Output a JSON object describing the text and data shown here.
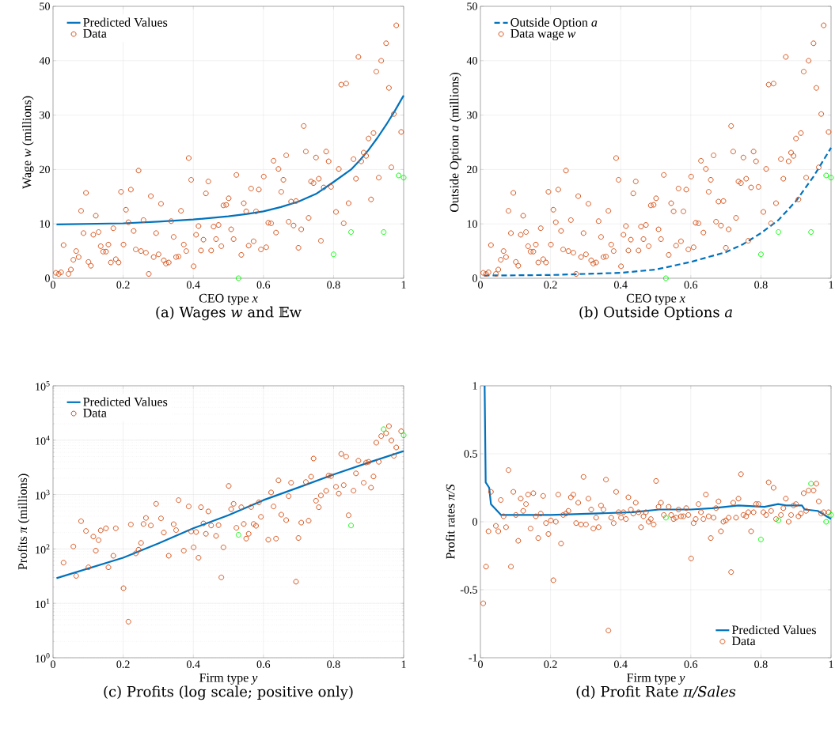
{
  "chart_data": [
    {
      "type": "scatter",
      "title": "(a) Wages *w* and 𝔼w",
      "xlabel": "CEO type *x*",
      "ylabel": "Wage *w* (millions)",
      "xlim": [
        0,
        1
      ],
      "ylim": [
        0,
        50
      ],
      "xticks": [
        0,
        0.2,
        0.4,
        0.6,
        0.8,
        1
      ],
      "yticks": [
        0,
        10,
        20,
        30,
        40,
        50
      ],
      "grid": true,
      "legend": "top left",
      "series": [
        {
          "name": "Predicted Values",
          "type": "line",
          "color": "#0072bd",
          "line_style": "solid",
          "x": [
            0.01,
            0.2,
            0.3,
            0.4,
            0.5,
            0.55,
            0.6,
            0.65,
            0.7,
            0.75,
            0.8,
            0.85,
            0.875,
            0.9,
            0.925,
            0.95,
            0.975,
            1.0
          ],
          "values": [
            9.9,
            10.1,
            10.4,
            10.8,
            11.4,
            11.8,
            12.3,
            13.1,
            14.1,
            15.5,
            17.7,
            20.0,
            21.7,
            23.6,
            25.8,
            28.2,
            30.8,
            33.6
          ]
        },
        {
          "name": "Data",
          "type": "scatter",
          "color": "#d95319",
          "marker": "circle",
          "x": [
            0.008,
            0.016,
            0.023,
            0.03,
            0.044,
            0.051,
            0.058,
            0.066,
            0.073,
            0.08,
            0.087,
            0.094,
            0.101,
            0.108,
            0.115,
            0.122,
            0.13,
            0.136,
            0.143,
            0.151,
            0.158,
            0.165,
            0.172,
            0.179,
            0.187,
            0.194,
            0.201,
            0.208,
            0.215,
            0.222,
            0.23,
            0.236,
            0.244,
            0.251,
            0.258,
            0.265,
            0.273,
            0.279,
            0.287,
            0.294,
            0.301,
            0.308,
            0.316,
            0.322,
            0.33,
            0.337,
            0.344,
            0.351,
            0.358,
            0.365,
            0.373,
            0.38,
            0.387,
            0.394,
            0.401,
            0.408,
            0.415,
            0.422,
            0.429,
            0.436,
            0.443,
            0.451,
            0.458,
            0.465,
            0.472,
            0.48,
            0.486,
            0.494,
            0.501,
            0.508,
            0.515,
            0.523,
            0.537,
            0.544,
            0.551,
            0.558,
            0.565,
            0.572,
            0.579,
            0.587,
            0.593,
            0.601,
            0.608,
            0.614,
            0.622,
            0.629,
            0.636,
            0.643,
            0.651,
            0.657,
            0.665,
            0.672,
            0.679,
            0.686,
            0.693,
            0.7,
            0.708,
            0.715,
            0.721,
            0.729,
            0.736,
            0.743,
            0.75,
            0.758,
            0.764,
            0.772,
            0.779,
            0.786,
            0.793,
            0.807,
            0.815,
            0.822,
            0.829,
            0.836,
            0.843,
            0.857,
            0.864,
            0.871,
            0.879,
            0.886,
            0.893,
            0.9,
            0.907,
            0.914,
            0.922,
            0.929,
            0.936,
            0.95,
            0.958,
            0.965,
            0.972,
            0.979,
            0.993
          ],
          "values": [
            1.0,
            0.8,
            1.1,
            6.1,
            0.8,
            1.6,
            3.4,
            5.0,
            3.9,
            12.4,
            8.3,
            15.7,
            3.0,
            2.3,
            8.0,
            11.5,
            8.5,
            5.9,
            4.9,
            4.9,
            6.2,
            2.9,
            9.2,
            3.5,
            2.9,
            15.9,
            6.2,
            12.6,
            10.3,
            16.3,
            8.7,
            5.3,
            19.8,
            5.0,
            10.7,
            4.7,
            0.8,
            15.1,
            3.9,
            8.3,
            4.4,
            13.7,
            3.3,
            2.7,
            2.9,
            10.5,
            7.6,
            3.9,
            4.0,
            12.4,
            6.2,
            5.0,
            22.1,
            18.1,
            2.2,
            8.0,
            9.6,
            5.1,
            7.1,
            15.6,
            17.8,
            5.1,
            9.5,
            7.2,
            9.8,
            5.9,
            13.4,
            13.5,
            14.7,
            9.0,
            7.2,
            19.0,
            4.3,
            13.8,
            12.3,
            6.0,
            16.5,
            6.8,
            12.3,
            16.3,
            5.3,
            18.7,
            5.7,
            10.2,
            10.1,
            21.6,
            8.4,
            20.1,
            15.9,
            18.1,
            22.6,
            10.4,
            14.1,
            9.7,
            14.2,
            5.6,
            9.0,
            28.0,
            23.3,
            11.1,
            17.8,
            17.5,
            22.2,
            18.3,
            6.9,
            16.7,
            23.3,
            21.5,
            16.8,
            12.2,
            20.1,
            35.6,
            10.1,
            35.8,
            13.8,
            21.9,
            18.3,
            40.7,
            21.5,
            23.1,
            22.5,
            25.7,
            14.5,
            26.7,
            38.0,
            18.5,
            40.0,
            43.2,
            35.0,
            20.4,
            30.2,
            46.5,
            26.9
          ]
        },
        {
          "type": "scatter",
          "color": "#00ff00",
          "marker": "circle",
          "x": [
            0.529,
            0.8,
            0.85,
            0.943,
            0.986,
            1.0
          ],
          "values": [
            0.0,
            4.4,
            8.5,
            8.5,
            18.9,
            18.5
          ]
        }
      ]
    },
    {
      "type": "scatter",
      "title": "(b) Outside Options *a*",
      "xlabel": "CEO type *x*",
      "ylabel": "Outside Option *a* (millions)",
      "xlim": [
        0,
        1
      ],
      "ylim": [
        0,
        50
      ],
      "xticks": [
        0,
        0.2,
        0.4,
        0.6,
        0.8,
        1
      ],
      "yticks": [
        0,
        10,
        20,
        30,
        40,
        50
      ],
      "grid": true,
      "legend": "top left",
      "series": [
        {
          "name": "Outside Option *a*",
          "type": "line",
          "color": "#0072bd",
          "line_style": "dashed",
          "x": [
            0.01,
            0.2,
            0.4,
            0.5,
            0.6,
            0.7,
            0.75,
            0.8,
            0.85,
            0.9,
            0.95,
            1.0
          ],
          "values": [
            0.5,
            0.6,
            1.0,
            1.6,
            3.0,
            4.8,
            6.3,
            8.3,
            10.7,
            14.2,
            18.7,
            24.0
          ]
        },
        {
          "name": "Data wage *w*",
          "type": "scatter",
          "color": "#d95319",
          "marker": "circle",
          "x": [
            0.008,
            0.016,
            0.023,
            0.03,
            0.044,
            0.051,
            0.058,
            0.066,
            0.073,
            0.08,
            0.087,
            0.094,
            0.101,
            0.108,
            0.115,
            0.122,
            0.13,
            0.136,
            0.143,
            0.151,
            0.158,
            0.165,
            0.172,
            0.179,
            0.187,
            0.194,
            0.201,
            0.208,
            0.215,
            0.222,
            0.23,
            0.236,
            0.244,
            0.251,
            0.258,
            0.265,
            0.273,
            0.279,
            0.287,
            0.294,
            0.301,
            0.308,
            0.316,
            0.322,
            0.33,
            0.337,
            0.344,
            0.351,
            0.358,
            0.365,
            0.373,
            0.38,
            0.387,
            0.394,
            0.401,
            0.408,
            0.415,
            0.422,
            0.429,
            0.436,
            0.443,
            0.451,
            0.458,
            0.465,
            0.472,
            0.48,
            0.486,
            0.494,
            0.501,
            0.508,
            0.515,
            0.523,
            0.537,
            0.544,
            0.551,
            0.558,
            0.565,
            0.572,
            0.579,
            0.587,
            0.593,
            0.601,
            0.608,
            0.614,
            0.622,
            0.629,
            0.636,
            0.643,
            0.651,
            0.657,
            0.665,
            0.672,
            0.679,
            0.686,
            0.693,
            0.7,
            0.708,
            0.715,
            0.721,
            0.729,
            0.736,
            0.743,
            0.75,
            0.758,
            0.764,
            0.772,
            0.779,
            0.786,
            0.793,
            0.807,
            0.815,
            0.822,
            0.829,
            0.836,
            0.843,
            0.857,
            0.864,
            0.871,
            0.879,
            0.886,
            0.893,
            0.9,
            0.907,
            0.914,
            0.922,
            0.929,
            0.936,
            0.95,
            0.958,
            0.965,
            0.972,
            0.979,
            0.993
          ],
          "values": [
            1.0,
            0.8,
            1.1,
            6.1,
            0.8,
            1.6,
            3.4,
            5.0,
            3.9,
            12.4,
            8.3,
            15.7,
            3.0,
            2.3,
            8.0,
            11.5,
            8.5,
            5.9,
            4.9,
            4.9,
            6.2,
            2.9,
            9.2,
            3.5,
            2.9,
            15.9,
            6.2,
            12.6,
            10.3,
            16.3,
            8.7,
            5.3,
            19.8,
            5.0,
            10.7,
            4.7,
            0.8,
            15.1,
            3.9,
            8.3,
            4.4,
            13.7,
            3.3,
            2.7,
            2.9,
            10.5,
            7.6,
            3.9,
            4.0,
            12.4,
            6.2,
            5.0,
            22.1,
            18.1,
            2.2,
            8.0,
            9.6,
            5.1,
            7.1,
            15.6,
            17.8,
            5.1,
            9.5,
            7.2,
            9.8,
            5.9,
            13.4,
            13.5,
            14.7,
            9.0,
            7.2,
            19.0,
            4.3,
            13.8,
            12.3,
            6.0,
            16.5,
            6.8,
            12.3,
            16.3,
            5.3,
            18.7,
            5.7,
            10.2,
            10.1,
            21.6,
            8.4,
            20.1,
            15.9,
            18.1,
            22.6,
            10.4,
            14.1,
            9.7,
            14.2,
            5.6,
            9.0,
            28.0,
            23.3,
            11.1,
            17.8,
            17.5,
            22.2,
            18.3,
            6.9,
            16.7,
            23.3,
            21.5,
            16.8,
            12.2,
            20.1,
            35.6,
            10.1,
            35.8,
            13.8,
            21.9,
            18.3,
            40.7,
            21.5,
            23.1,
            22.5,
            25.7,
            14.5,
            26.7,
            38.0,
            18.5,
            40.0,
            43.2,
            35.0,
            20.4,
            30.2,
            46.5,
            26.9
          ]
        },
        {
          "type": "scatter",
          "color": "#00ff00",
          "marker": "circle",
          "x": [
            0.529,
            0.8,
            0.85,
            0.943,
            0.986,
            1.0
          ],
          "values": [
            0.0,
            4.4,
            8.5,
            8.5,
            18.9,
            18.5
          ]
        }
      ]
    },
    {
      "type": "scatter",
      "title": "(c) Profits (log scale; positive only)",
      "xlabel": "Firm type *y*",
      "ylabel": "Profits *π* (millions)",
      "xlim": [
        0,
        1
      ],
      "ylim": [
        1,
        100000
      ],
      "xticks": [
        0,
        0.2,
        0.4,
        0.6,
        0.8,
        1
      ],
      "yticks": [
        {
          "value": 1,
          "label": "10$^{0}$"
        },
        {
          "value": 10,
          "label": "10$^{1}$"
        },
        {
          "value": 100,
          "label": "10$^{2}$"
        },
        {
          "value": 1000,
          "label": "10$^{3}$"
        },
        {
          "value": 10000,
          "label": "10$^{4}$"
        },
        {
          "value": 100000,
          "label": "10$^{5}$"
        }
      ],
      "log": "y",
      "grid": true,
      "legend": "top left",
      "series": [
        {
          "name": "Predicted Values",
          "type": "line",
          "color": "#0072bd",
          "line_style": "solid",
          "x": [
            0.01,
            0.2,
            0.3,
            0.4,
            0.5,
            0.6,
            0.7,
            0.8,
            0.9,
            1.0
          ],
          "values": [
            29,
            69,
            126,
            240,
            417,
            790,
            1350,
            2340,
            3880,
            6300
          ]
        },
        {
          "name": "Data",
          "type": "scatter",
          "color": "#d95319",
          "marker": "circle",
          "x": [
            0.03,
            0.058,
            0.066,
            0.08,
            0.094,
            0.101,
            0.115,
            0.122,
            0.13,
            0.136,
            0.151,
            0.158,
            0.172,
            0.179,
            0.201,
            0.215,
            0.222,
            0.236,
            0.244,
            0.251,
            0.258,
            0.265,
            0.279,
            0.294,
            0.308,
            0.316,
            0.33,
            0.344,
            0.351,
            0.358,
            0.373,
            0.387,
            0.394,
            0.401,
            0.408,
            0.415,
            0.422,
            0.429,
            0.436,
            0.443,
            0.451,
            0.465,
            0.472,
            0.48,
            0.486,
            0.501,
            0.508,
            0.515,
            0.523,
            0.537,
            0.544,
            0.551,
            0.558,
            0.565,
            0.572,
            0.579,
            0.587,
            0.593,
            0.614,
            0.622,
            0.629,
            0.636,
            0.643,
            0.651,
            0.665,
            0.672,
            0.679,
            0.693,
            0.7,
            0.708,
            0.721,
            0.729,
            0.736,
            0.743,
            0.75,
            0.758,
            0.764,
            0.779,
            0.786,
            0.793,
            0.807,
            0.815,
            0.822,
            0.829,
            0.836,
            0.843,
            0.857,
            0.864,
            0.871,
            0.886,
            0.893,
            0.9,
            0.907,
            0.914,
            0.922,
            0.929,
            0.936,
            0.95,
            0.958,
            0.965,
            0.972,
            0.979,
            0.993
          ],
          "values": [
            56,
            111,
            32,
            324,
            214,
            46,
            169,
            93,
            145,
            219,
            240,
            46,
            75,
            240,
            19,
            4.6,
            282,
            83,
            97,
            129,
            288,
            372,
            270,
            676,
            365,
            200,
            75,
            285,
            222,
            790,
            93,
            605,
            210,
            107,
            205,
            69,
            585,
            295,
            190,
            490,
            270,
            174,
            274,
            30,
            107,
            1440,
            540,
            676,
            245,
            585,
            288,
            155,
            190,
            590,
            288,
            267,
            720,
            390,
            148,
            1095,
            605,
            155,
            1820,
            427,
            339,
            935,
            1650,
            25,
            159,
            305,
            1700,
            331,
            2130,
            4600,
            770,
            585,
            960,
            1170,
            2240,
            2190,
            1390,
            1045,
            5590,
            1490,
            4990,
            417,
            1180,
            2450,
            4200,
            1650,
            3880,
            4000,
            1340,
            2150,
            9000,
            4000,
            11900,
            13450,
            18100,
            9900,
            5160,
            7350,
            14600
          ]
        },
        {
          "type": "scatter",
          "color": "#00ff00",
          "marker": "circle",
          "x": [
            0.529,
            0.85,
            0.943,
            1.0
          ],
          "values": [
            182,
            270,
            15900,
            12300
          ]
        }
      ]
    },
    {
      "type": "scatter",
      "title": "(d) Profit Rate *π/Sales*",
      "xlabel": "Firm type *y*",
      "ylabel": "Profit rates *π/S*",
      "xlim": [
        0,
        1
      ],
      "ylim": [
        -1,
        1
      ],
      "xticks": [
        0,
        0.2,
        0.4,
        0.6,
        0.8,
        1
      ],
      "yticks": [
        -1,
        -0.5,
        0,
        0.5,
        1
      ],
      "grid": true,
      "legend": "bottom right",
      "series": [
        {
          "name": "Predicted Values",
          "type": "line",
          "color": "#0072bd",
          "line_style": "solid",
          "x": [
            0.012,
            0.015,
            0.025,
            0.03,
            0.059,
            0.134,
            0.2,
            0.322,
            0.435,
            0.51,
            0.6,
            0.661,
            0.736,
            0.81,
            0.849,
            0.872,
            0.917,
            0.925,
            0.962,
            1.0
          ],
          "values": [
            1.0,
            0.29,
            0.25,
            0.13,
            0.05,
            0.05,
            0.05,
            0.06,
            0.07,
            0.09,
            0.09,
            0.1,
            0.12,
            0.11,
            0.13,
            0.12,
            0.12,
            0.09,
            0.08,
            0.02
          ]
        },
        {
          "name": "Data",
          "type": "scatter",
          "color": "#d95319",
          "marker": "circle",
          "x": [
            0.008,
            0.016,
            0.023,
            0.03,
            0.044,
            0.051,
            0.058,
            0.066,
            0.073,
            0.08,
            0.087,
            0.094,
            0.101,
            0.108,
            0.115,
            0.122,
            0.13,
            0.136,
            0.143,
            0.151,
            0.158,
            0.165,
            0.172,
            0.179,
            0.187,
            0.194,
            0.201,
            0.208,
            0.215,
            0.222,
            0.23,
            0.236,
            0.244,
            0.251,
            0.258,
            0.265,
            0.273,
            0.279,
            0.287,
            0.294,
            0.301,
            0.308,
            0.316,
            0.322,
            0.33,
            0.337,
            0.344,
            0.351,
            0.358,
            0.365,
            0.373,
            0.38,
            0.387,
            0.394,
            0.401,
            0.408,
            0.415,
            0.422,
            0.429,
            0.436,
            0.443,
            0.451,
            0.458,
            0.465,
            0.472,
            0.48,
            0.486,
            0.494,
            0.501,
            0.508,
            0.515,
            0.523,
            0.537,
            0.544,
            0.551,
            0.558,
            0.565,
            0.572,
            0.579,
            0.587,
            0.593,
            0.601,
            0.608,
            0.614,
            0.622,
            0.629,
            0.636,
            0.643,
            0.651,
            0.657,
            0.665,
            0.672,
            0.679,
            0.686,
            0.693,
            0.7,
            0.708,
            0.715,
            0.721,
            0.729,
            0.736,
            0.743,
            0.75,
            0.758,
            0.764,
            0.772,
            0.779,
            0.786,
            0.793,
            0.807,
            0.815,
            0.822,
            0.829,
            0.836,
            0.843,
            0.857,
            0.864,
            0.871,
            0.879,
            0.886,
            0.893,
            0.9,
            0.907,
            0.914,
            0.922,
            0.929,
            0.936,
            0.95,
            0.958,
            0.965,
            0.972,
            0.979,
            0.993
          ],
          "values": [
            -0.6,
            -0.33,
            -0.07,
            0.22,
            -0.03,
            -0.07,
            0.16,
            0.04,
            -0.04,
            0.38,
            -0.33,
            0.22,
            0.05,
            -0.14,
            0.17,
            0.08,
            0.13,
            0.2,
            -0.05,
            0.21,
            0.04,
            -0.12,
            0.06,
            0.19,
            -0.01,
            -0.09,
            0.01,
            -0.43,
            0.0,
            0.2,
            -0.16,
            0.05,
            0.06,
            0.08,
            0.18,
            0.2,
            -0.01,
            0.14,
            -0.02,
            0.33,
            -0.02,
            0.17,
            0.09,
            -0.05,
            0.03,
            -0.04,
            0.12,
            0.09,
            0.31,
            -0.8,
            0.03,
            -0.01,
            0.22,
            0.07,
            0.03,
            0.07,
            0.02,
            0.18,
            0.09,
            0.06,
            0.14,
            0.07,
            -0.04,
            0.04,
            0.07,
            0.0,
            0.02,
            -0.02,
            0.3,
            0.11,
            0.14,
            0.05,
            0.11,
            0.05,
            0.02,
            0.03,
            0.09,
            0.04,
            0.04,
            0.1,
            0.05,
            -0.27,
            -0.01,
            0.02,
            0.13,
            0.07,
            0.02,
            0.2,
            0.04,
            -0.12,
            0.03,
            0.1,
            0.15,
            -0.07,
            0.0,
            0.01,
            0.03,
            -0.37,
            0.14,
            0.03,
            0.17,
            0.35,
            0.05,
            0.04,
            0.07,
            -0.07,
            0.07,
            0.13,
            0.13,
            0.07,
            0.05,
            0.29,
            0.08,
            0.25,
            0.02,
            0.05,
            0.1,
            0.17,
            0.0,
            0.05,
            0.12,
            0.13,
            0.04,
            0.06,
            0.21,
            0.08,
            0.23,
            0.23,
            0.28,
            0.15,
            0.06,
            0.07,
            0.07
          ]
        },
        {
          "type": "scatter",
          "color": "#00ff00",
          "marker": "circle",
          "x": [
            0.529,
            0.8,
            0.85,
            0.943,
            0.986,
            1.0
          ],
          "values": [
            0.03,
            -0.13,
            0.01,
            0.28,
            0.0,
            0.05
          ]
        }
      ]
    }
  ]
}
